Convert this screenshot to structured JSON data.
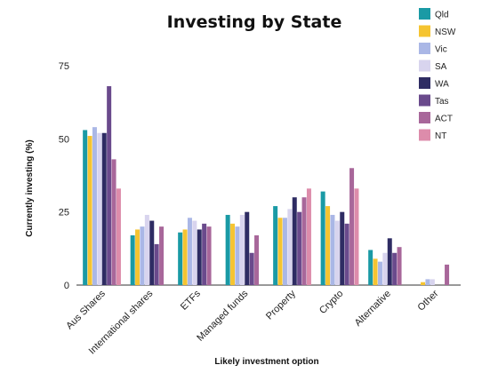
{
  "chart_data": {
    "type": "bar",
    "title": "Investing by State",
    "xlabel": "Likely investment option",
    "ylabel": "Currently investing (%)",
    "ylim": [
      0,
      75
    ],
    "yticks": [
      0,
      25,
      50,
      75
    ],
    "grid": false,
    "legend_position": "right",
    "categories": [
      "Aus Shares",
      "International shares",
      "ETFs",
      "Managed funds",
      "Property",
      "Crypto",
      "Alternative",
      "Other"
    ],
    "series": [
      {
        "name": "Qld",
        "color": "#1a9aa5",
        "values": [
          53,
          17,
          18,
          24,
          27,
          32,
          12,
          0
        ]
      },
      {
        "name": "NSW",
        "color": "#f5c431",
        "values": [
          51,
          19,
          19,
          21,
          23,
          27,
          9,
          1
        ]
      },
      {
        "name": "Vic",
        "color": "#aab7e6",
        "values": [
          54,
          20,
          23,
          20,
          23,
          24,
          8,
          2
        ]
      },
      {
        "name": "SA",
        "color": "#d8d4ee",
        "values": [
          52,
          24,
          22,
          24,
          26,
          22,
          11,
          2
        ]
      },
      {
        "name": "WA",
        "color": "#2e2c63",
        "values": [
          52,
          22,
          19,
          25,
          30,
          25,
          16,
          0
        ]
      },
      {
        "name": "Tas",
        "color": "#6a4a8c",
        "values": [
          68,
          14,
          21,
          11,
          25,
          21,
          11,
          0
        ]
      },
      {
        "name": "ACT",
        "color": "#a8679a",
        "values": [
          43,
          20,
          20,
          17,
          30,
          40,
          13,
          7
        ]
      },
      {
        "name": "NT",
        "color": "#dd8cab",
        "values": [
          33,
          0,
          0,
          0,
          33,
          33,
          0,
          0
        ]
      }
    ]
  }
}
